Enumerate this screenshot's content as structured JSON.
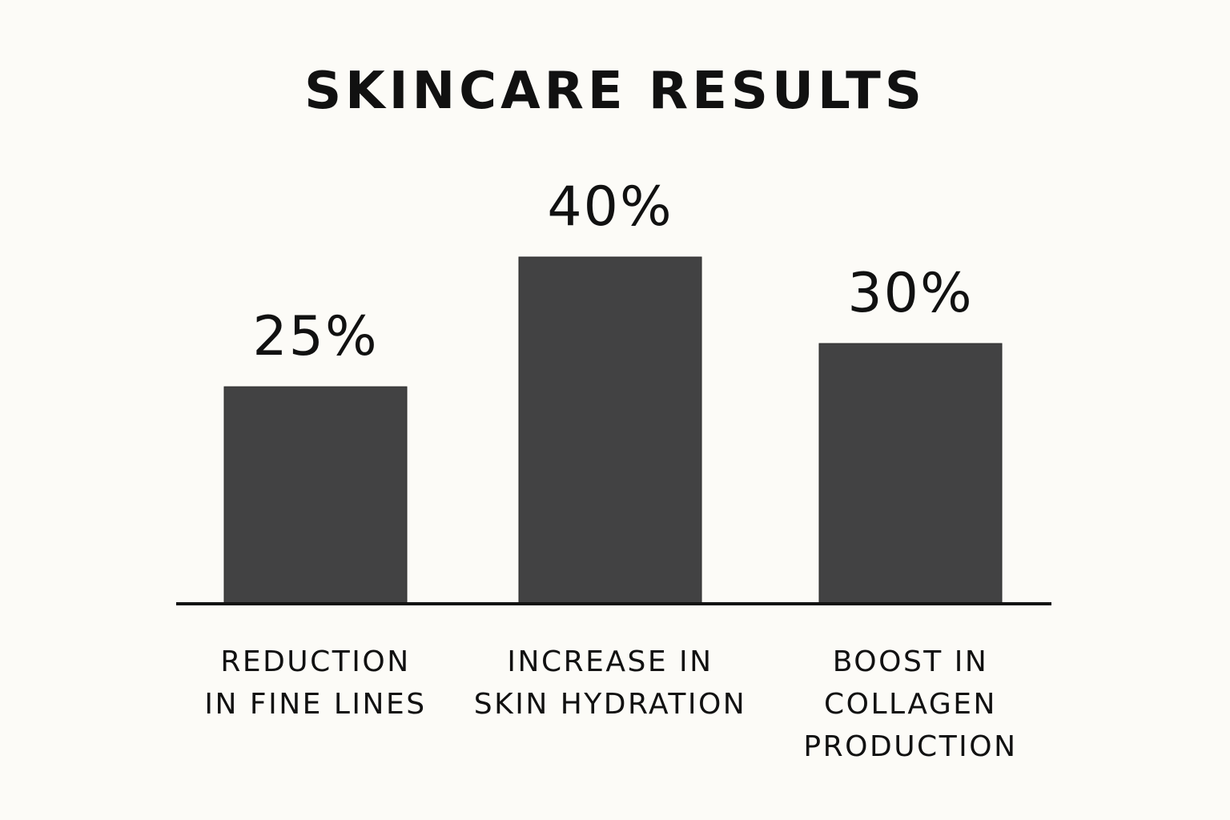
{
  "chart_data": {
    "type": "bar",
    "title": "SKINCARE RESULTS",
    "categories": [
      "REDUCTION\nIN FINE LINES",
      "INCREASE IN\nSKIN HYDRATION",
      "BOOST IN\nCOLLAGEN\nPRODUCTION"
    ],
    "values": [
      25,
      40,
      30
    ],
    "value_labels": [
      "25%",
      "40%",
      "30%"
    ],
    "unit": "%",
    "xlabel": "",
    "ylabel": "",
    "grid": false,
    "legend": "none",
    "bar_color": "#424243",
    "axis_color": "#111111",
    "background": "#fcfbf7"
  }
}
